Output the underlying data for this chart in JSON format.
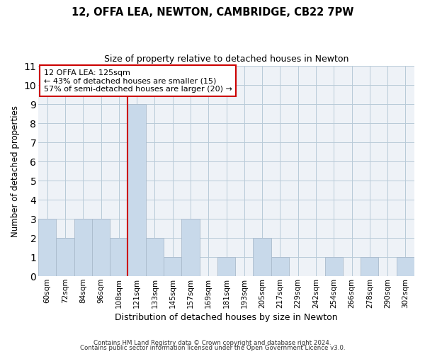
{
  "title": "12, OFFA LEA, NEWTON, CAMBRIDGE, CB22 7PW",
  "subtitle": "Size of property relative to detached houses in Newton",
  "xlabel": "Distribution of detached houses by size in Newton",
  "ylabel": "Number of detached properties",
  "bar_labels": [
    "60sqm",
    "72sqm",
    "84sqm",
    "96sqm",
    "108sqm",
    "121sqm",
    "133sqm",
    "145sqm",
    "157sqm",
    "169sqm",
    "181sqm",
    "193sqm",
    "205sqm",
    "217sqm",
    "229sqm",
    "242sqm",
    "254sqm",
    "266sqm",
    "278sqm",
    "290sqm",
    "302sqm"
  ],
  "bar_values": [
    3,
    2,
    3,
    3,
    2,
    9,
    2,
    1,
    3,
    0,
    1,
    0,
    2,
    1,
    0,
    0,
    1,
    0,
    1,
    0,
    1
  ],
  "bar_color": "#c8d9ea",
  "bar_edge_color": "#aabbcc",
  "grid_color": "#b8cad8",
  "background_color": "#eef2f7",
  "vline_x": 4.5,
  "vline_color": "#cc0000",
  "annotation_title": "12 OFFA LEA: 125sqm",
  "annotation_line1": "← 43% of detached houses are smaller (15)",
  "annotation_line2": "57% of semi-detached houses are larger (20) →",
  "annotation_box_color": "#ffffff",
  "annotation_box_edge": "#cc0000",
  "ylim": [
    0,
    11
  ],
  "yticks": [
    0,
    1,
    2,
    3,
    4,
    5,
    6,
    7,
    8,
    9,
    10,
    11
  ],
  "footer1": "Contains HM Land Registry data © Crown copyright and database right 2024.",
  "footer2": "Contains public sector information licensed under the Open Government Licence v3.0."
}
